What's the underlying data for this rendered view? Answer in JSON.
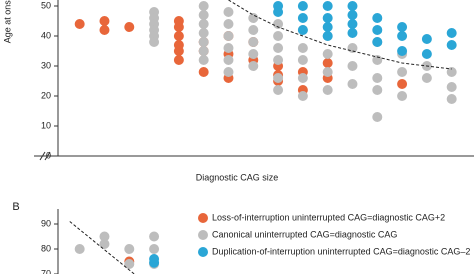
{
  "chart_data": [
    {
      "type": "scatter",
      "y_label": "Age at onset",
      "x_label": "Diagnostic CAG size",
      "xlim": [
        36.4,
        53.9
      ],
      "ylim": [
        0,
        52
      ],
      "yticks": [
        0,
        10,
        20,
        30,
        40,
        50
      ],
      "series": [
        {
          "color": "#e8663a",
          "x": [
            38,
            39,
            39,
            40,
            42,
            42,
            42,
            42,
            42,
            42,
            43,
            43,
            43,
            44,
            44,
            44,
            45,
            45,
            46,
            46,
            46,
            47,
            47,
            48,
            48,
            51
          ],
          "values": [
            44,
            45,
            42,
            43,
            45,
            43,
            40,
            37,
            35,
            32,
            38,
            35,
            28,
            40,
            34,
            26,
            38,
            32,
            30,
            27,
            25,
            28,
            22,
            31,
            26,
            24
          ]
        },
        {
          "color": "#bdbdbd",
          "x": [
            41,
            41,
            41,
            41,
            41,
            41,
            43,
            43,
            43,
            43,
            43,
            43,
            43,
            44,
            44,
            44,
            44,
            44,
            44,
            45,
            45,
            45,
            45,
            45,
            46,
            46,
            46,
            46,
            46,
            46,
            47,
            47,
            47,
            47,
            47,
            48,
            48,
            48,
            48,
            49,
            49,
            49,
            50,
            50,
            50,
            50,
            50,
            51,
            51,
            51,
            52,
            52,
            53,
            53,
            53
          ],
          "values": [
            48,
            46,
            44,
            42,
            40,
            38,
            50,
            47,
            44,
            41,
            38,
            35,
            32,
            48,
            44,
            40,
            36,
            32,
            28,
            46,
            42,
            38,
            34,
            30,
            44,
            40,
            36,
            32,
            26,
            22,
            42,
            36,
            32,
            26,
            20,
            40,
            34,
            28,
            22,
            36,
            30,
            24,
            38,
            32,
            26,
            22,
            13,
            34,
            28,
            20,
            30,
            26,
            28,
            23,
            19
          ]
        },
        {
          "color": "#2aa6d6",
          "x": [
            46,
            46,
            47,
            47,
            47,
            48,
            48,
            48,
            48,
            49,
            49,
            49,
            49,
            50,
            50,
            50,
            51,
            51,
            51,
            52,
            52,
            53,
            53
          ],
          "values": [
            50,
            48,
            50,
            46,
            42,
            50,
            46,
            43,
            40,
            50,
            47,
            44,
            41,
            46,
            42,
            38,
            43,
            40,
            35,
            39,
            34,
            41,
            37
          ]
        }
      ],
      "trend": {
        "x": [
          44,
          45,
          46,
          47,
          48,
          49,
          50,
          51,
          52,
          53
        ],
        "values": [
          52,
          47,
          43,
          40,
          37,
          35,
          33,
          31,
          30,
          29
        ]
      }
    },
    {
      "type": "scatter",
      "panel_label": "B",
      "xlim": [
        36.4,
        53.9
      ],
      "ylim": [
        70,
        96
      ],
      "yticks": [
        70,
        80,
        90
      ],
      "series": [
        {
          "name": "Loss-of-interruption uninterrupted CAG=diagnostic CAG+2",
          "color": "#e8663a",
          "x": [
            40
          ],
          "values": [
            75
          ]
        },
        {
          "name": "Canonical uninterrupted CAG=diagnostic CAG",
          "color": "#bdbdbd",
          "x": [
            38,
            39,
            39,
            40,
            40,
            41,
            41,
            41
          ],
          "values": [
            80,
            85,
            82,
            80,
            74,
            85,
            80,
            74
          ]
        },
        {
          "name": "Duplication-of-interruption uninterrupted CAG=diagnostic CAG–2",
          "color": "#2aa6d6",
          "x": [
            41,
            41
          ],
          "values": [
            76,
            74.5
          ]
        }
      ],
      "trend": {
        "x": [
          37.6,
          40.2
        ],
        "values": [
          91,
          70
        ]
      }
    }
  ]
}
